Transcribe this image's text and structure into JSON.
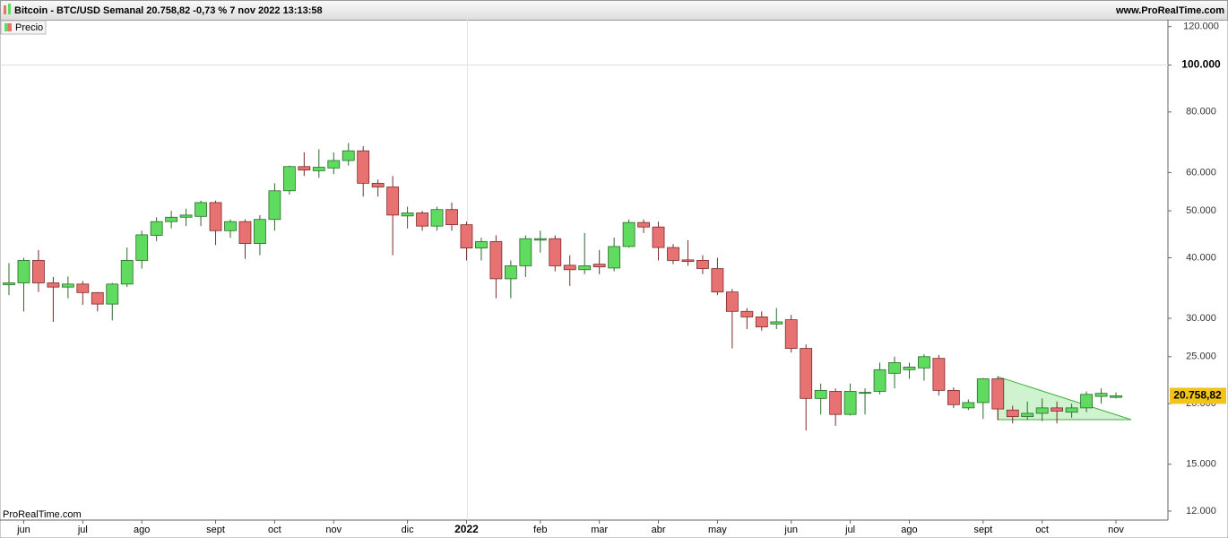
{
  "chart_data": {
    "type": "candlestick",
    "title": "Bitcoin - BTC/USD Semanal 20.758,82 -0,73 % 7 nov 2022 13:13:58",
    "source": "www.ProRealTime.com",
    "watermark": "ProRealTime.com",
    "log_scale": true,
    "ylim": [
      11500,
      124000
    ],
    "yticks": [
      {
        "value": 120000,
        "label": "120.000"
      },
      {
        "value": 100000,
        "label": "100.000"
      },
      {
        "value": 80000,
        "label": "80.000"
      },
      {
        "value": 60000,
        "label": "60.000"
      },
      {
        "value": 50000,
        "label": "50.000"
      },
      {
        "value": 40000,
        "label": "40.000"
      },
      {
        "value": 30000,
        "label": "30.000"
      },
      {
        "value": 25000,
        "label": "25.000"
      },
      {
        "value": 20000,
        "label": "20.000"
      },
      {
        "value": 15000,
        "label": "15.000"
      },
      {
        "value": 12000,
        "label": "12.000"
      }
    ],
    "major_ytick": 100000,
    "major_category": "2022",
    "current_price": {
      "value": 20758.82,
      "label": "20.758,82"
    },
    "categories": [
      null,
      "jun",
      null,
      null,
      null,
      "jul",
      null,
      null,
      null,
      "ago",
      null,
      null,
      null,
      null,
      "sept",
      null,
      null,
      null,
      "oct",
      null,
      null,
      null,
      "nov",
      null,
      null,
      null,
      null,
      "dic",
      null,
      null,
      null,
      "2022",
      null,
      null,
      null,
      null,
      "feb",
      null,
      null,
      null,
      "mar",
      null,
      null,
      null,
      "abr",
      null,
      null,
      null,
      "may",
      null,
      null,
      null,
      null,
      "jun",
      null,
      null,
      null,
      "jul",
      null,
      null,
      null,
      "ago",
      null,
      null,
      null,
      null,
      "sept",
      null,
      null,
      null,
      "oct",
      null,
      null,
      null,
      null,
      "nov"
    ],
    "series": [
      {
        "name": "Precio",
        "up_color": "#5fdc5f",
        "down_color": "#e87272",
        "open": [
          35200,
          35500,
          39500,
          35500,
          34800,
          35300,
          33900,
          32100,
          35300,
          39500,
          44500,
          47500,
          48500,
          48700,
          52000,
          45500,
          47500,
          42800,
          48000,
          55000,
          61700,
          60500,
          61300,
          63500,
          66500,
          57000,
          56000,
          48800,
          49500,
          46500,
          50300,
          46800,
          41900,
          43200,
          36200,
          38500,
          43500,
          43800,
          38600,
          37800,
          38800,
          38100,
          42200,
          47300,
          46300,
          42000,
          39600,
          39500,
          38000,
          34000,
          31000,
          30200,
          29200,
          29800,
          26000,
          20500,
          21200,
          19000,
          21000,
          21200,
          23100,
          23500,
          23700,
          24800,
          21300,
          19600,
          20100,
          22500,
          19400,
          18800,
          19100,
          19600,
          19200,
          19600,
          20700,
          20600
        ],
        "high": [
          39000,
          40000,
          41500,
          36500,
          36600,
          35800,
          34000,
          35500,
          42000,
          45500,
          48500,
          50000,
          50500,
          52500,
          52500,
          48000,
          48000,
          49000,
          57000,
          62000,
          66000,
          67000,
          66000,
          69000,
          68000,
          58000,
          59000,
          51000,
          50000,
          51000,
          52000,
          47500,
          44000,
          44500,
          39500,
          44500,
          45500,
          44500,
          40500,
          45000,
          41500,
          44000,
          48000,
          48000,
          47500,
          42700,
          43500,
          40500,
          40000,
          34500,
          31500,
          31000,
          31500,
          30500,
          26500,
          22000,
          21500,
          22000,
          21500,
          24300,
          25000,
          24300,
          25300,
          25200,
          21600,
          20400,
          22600,
          22700,
          19800,
          20200,
          20500,
          20200,
          20000,
          21200,
          21500,
          21100
        ],
        "low": [
          33500,
          31000,
          34000,
          29500,
          33000,
          32000,
          31000,
          29700,
          34800,
          38000,
          43300,
          46000,
          46500,
          46500,
          42500,
          44000,
          39800,
          40500,
          45500,
          54000,
          59000,
          58500,
          59500,
          62000,
          53500,
          53500,
          40500,
          46000,
          45500,
          45500,
          45500,
          39500,
          39500,
          33000,
          33000,
          36500,
          41000,
          37500,
          35000,
          37000,
          37000,
          37500,
          42000,
          45000,
          39500,
          38800,
          38500,
          37000,
          33500,
          26000,
          28500,
          28300,
          28500,
          25500,
          17600,
          19000,
          18000,
          18900,
          19000,
          20900,
          21500,
          22500,
          22300,
          20800,
          19600,
          19400,
          18600,
          18500,
          18200,
          18500,
          18400,
          18200,
          18700,
          19200,
          20000,
          20500
        ],
        "close": [
          35500,
          39500,
          35500,
          34800,
          35300,
          33900,
          32100,
          35300,
          39500,
          44600,
          47500,
          48500,
          49000,
          52000,
          45500,
          47500,
          42800,
          48000,
          55000,
          61700,
          60700,
          61500,
          63500,
          66500,
          57000,
          56000,
          49000,
          49500,
          46500,
          50300,
          46800,
          41900,
          43200,
          36200,
          38500,
          43800,
          43800,
          38500,
          37800,
          38500,
          38300,
          42200,
          47300,
          46300,
          42000,
          39500,
          39300,
          38000,
          34000,
          31000,
          30200,
          28800,
          29500,
          26000,
          20500,
          21300,
          19000,
          21200,
          21100,
          23500,
          24300,
          23800,
          25000,
          21300,
          19900,
          20100,
          22500,
          19500,
          18800,
          19100,
          19600,
          19300,
          19600,
          20900,
          21000,
          20758.82
        ]
      }
    ]
  }
}
